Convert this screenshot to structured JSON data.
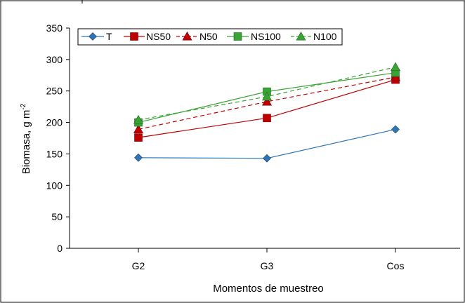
{
  "chart_data": {
    "type": "line",
    "xlabel": "Momentos de muestreo",
    "ylabel_main": "Biomasa, g m",
    "ylabel_sup": "-2",
    "categories": [
      "G2",
      "G3",
      "Cos"
    ],
    "ylim": [
      0,
      350
    ],
    "yticks": [
      0,
      50,
      100,
      150,
      200,
      250,
      300,
      350
    ],
    "grid": false,
    "legend_position": "top-left",
    "series": [
      {
        "name": "T",
        "values": [
          144,
          143,
          189
        ],
        "color": "#2E75B6",
        "marker": "diamond",
        "dashed": false
      },
      {
        "name": "NS50",
        "values": [
          176,
          207,
          268
        ],
        "color": "#C00000",
        "marker": "square",
        "dashed": false
      },
      {
        "name": "N50",
        "values": [
          189,
          233,
          272
        ],
        "color": "#C00000",
        "marker": "triangle",
        "dashed": true
      },
      {
        "name": "NS100",
        "values": [
          200,
          249,
          279
        ],
        "color": "#3AA335",
        "marker": "square",
        "dashed": false
      },
      {
        "name": "N100",
        "values": [
          204,
          241,
          288
        ],
        "color": "#3AA335",
        "marker": "triangle",
        "dashed": true
      }
    ]
  }
}
